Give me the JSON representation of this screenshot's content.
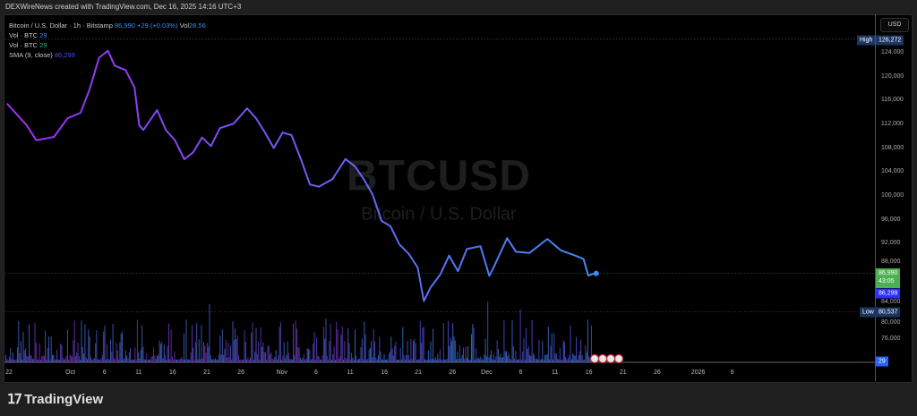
{
  "caption": "DEXWireNews created with TradingView.com, Dec 16, 2025 14:16 UTC+3",
  "legend": {
    "symbol": "Bitcoin / U.S. Dollar · 1h · Bitstamp",
    "price": "86,990",
    "change": "+29 (+0.03%)",
    "vol_label": "Vol",
    "vol_value": "28.56",
    "vol1_label": "Vol · BTC",
    "vol1_value": "29",
    "vol2_label": "Vol · BTC",
    "vol2_value": "29",
    "sma_label": "SMA (9, close)",
    "sma_value": "86,299"
  },
  "watermark": {
    "ticker": "BTCUSD",
    "name": "Bitcoin / U.S. Dollar"
  },
  "currency_button": "USD",
  "tags": {
    "high_label": "High",
    "high_value": "126,272",
    "low_label": "Low",
    "low_value": "80,537",
    "last_price": "86,990",
    "countdown": "43:05",
    "sma_price": "86,299",
    "volume": "29"
  },
  "colors": {
    "line_start": "#a12cf2",
    "line_end": "#3d8cf5",
    "last_tag": "#4caf50",
    "sma_tag": "#2d2dff",
    "hl_tag": "#1c3560"
  },
  "footer": {
    "brand": "TradingView"
  },
  "chart_data": {
    "type": "line",
    "title": "Bitcoin / U.S. Dollar · 1h · Bitstamp",
    "ylim": [
      74000,
      128000
    ],
    "y_ticks": [
      124000,
      120000,
      116000,
      112000,
      108000,
      104000,
      100000,
      96000,
      92000,
      88000,
      84000,
      80000,
      76000
    ],
    "y_tick_labels": [
      "124,000",
      "120,000",
      "116,000",
      "112,000",
      "108,000",
      "104,000",
      "100,000",
      "96,000",
      "92,000",
      "88,000",
      "84,000",
      "80,000",
      "76,000"
    ],
    "x_unit": "days since Sep 22, 2025",
    "x_ticks": [
      {
        "d": 0,
        "label": "22"
      },
      {
        "d": 9,
        "label": "Oct"
      },
      {
        "d": 14,
        "label": "6"
      },
      {
        "d": 19,
        "label": "11"
      },
      {
        "d": 24,
        "label": "16"
      },
      {
        "d": 29,
        "label": "21"
      },
      {
        "d": 34,
        "label": "26"
      },
      {
        "d": 40,
        "label": "Nov"
      },
      {
        "d": 45,
        "label": "6"
      },
      {
        "d": 50,
        "label": "11"
      },
      {
        "d": 55,
        "label": "16"
      },
      {
        "d": 60,
        "label": "21"
      },
      {
        "d": 65,
        "label": "26"
      },
      {
        "d": 70,
        "label": "Dec"
      },
      {
        "d": 75,
        "label": "6"
      },
      {
        "d": 80,
        "label": "11"
      },
      {
        "d": 85,
        "label": "16"
      },
      {
        "d": 90,
        "label": "21"
      },
      {
        "d": 95,
        "label": "26"
      },
      {
        "d": 101,
        "label": "2026"
      },
      {
        "d": 106,
        "label": "6"
      }
    ],
    "series": [
      {
        "name": "BTCUSD",
        "points": [
          [
            -0.3,
            115500
          ],
          [
            2.6,
            112000
          ],
          [
            4,
            109500
          ],
          [
            6.6,
            110000
          ],
          [
            8.6,
            113000
          ],
          [
            10.5,
            114000
          ],
          [
            11.8,
            118000
          ],
          [
            13.2,
            123000
          ],
          [
            14.5,
            124500
          ],
          [
            15.5,
            122000
          ],
          [
            17.1,
            121000
          ],
          [
            18.4,
            118000
          ],
          [
            19.1,
            112000
          ],
          [
            19.7,
            111000
          ],
          [
            21.7,
            114500
          ],
          [
            23,
            111000
          ],
          [
            24.3,
            109500
          ],
          [
            25.7,
            106000
          ],
          [
            27,
            107500
          ],
          [
            28.3,
            110000
          ],
          [
            29.6,
            108500
          ],
          [
            30.9,
            111500
          ],
          [
            32.9,
            112000
          ],
          [
            34.9,
            114500
          ],
          [
            36.2,
            113000
          ],
          [
            37.5,
            110500
          ],
          [
            38.8,
            108000
          ],
          [
            40.1,
            110500
          ],
          [
            41.4,
            110000
          ],
          [
            42.8,
            106000
          ],
          [
            44.1,
            102000
          ],
          [
            45.4,
            101500
          ],
          [
            47.4,
            103000
          ],
          [
            49.3,
            106000
          ],
          [
            50.7,
            105000
          ],
          [
            52,
            103000
          ],
          [
            53.3,
            100000
          ],
          [
            54.6,
            96000
          ],
          [
            55.9,
            95000
          ],
          [
            57.2,
            92000
          ],
          [
            58.6,
            90500
          ],
          [
            59.9,
            88000
          ],
          [
            60.8,
            82500
          ],
          [
            61.8,
            84500
          ],
          [
            63.2,
            87000
          ],
          [
            64.5,
            90000
          ],
          [
            65.8,
            87500
          ],
          [
            67.1,
            91000
          ],
          [
            69.1,
            91500
          ],
          [
            70.4,
            86500
          ],
          [
            71.1,
            88000
          ],
          [
            73,
            93000
          ],
          [
            74.3,
            90500
          ],
          [
            76.3,
            90500
          ],
          [
            78.9,
            93000
          ],
          [
            80.9,
            91000
          ],
          [
            82.9,
            90000
          ],
          [
            84.2,
            89500
          ],
          [
            84.9,
            86700
          ],
          [
            85.8,
            87000
          ]
        ]
      }
    ],
    "volume_peak_btc_approx": 1500
  }
}
